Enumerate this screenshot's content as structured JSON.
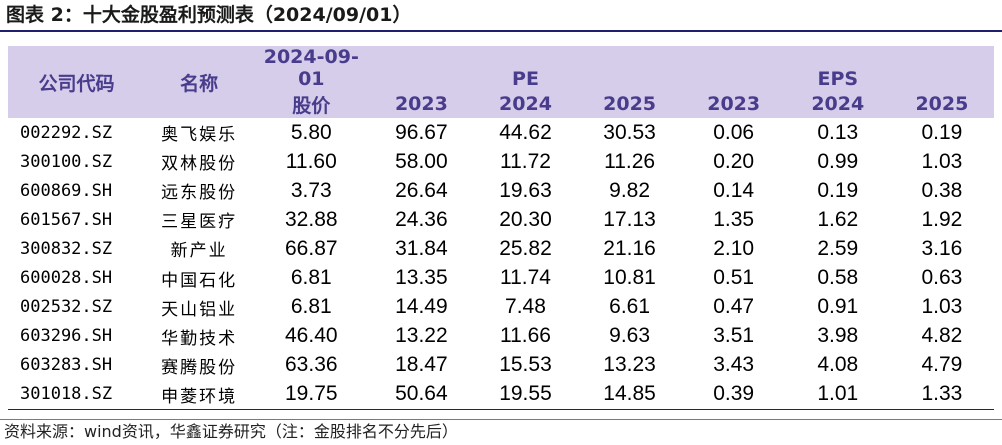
{
  "title": "图表 2：十大金股盈利预测表（2024/09/01）",
  "header": {
    "code": "公司代码",
    "name": "名称",
    "price_date": "2024-09-01",
    "price_label": "股价",
    "pe_group": "PE",
    "eps_group": "EPS",
    "years": [
      "2023",
      "2024",
      "2025"
    ]
  },
  "rows": [
    {
      "code": "002292.SZ",
      "name": "奥飞娱乐",
      "price": "5.80",
      "pe": [
        "96.67",
        "44.62",
        "30.53"
      ],
      "eps": [
        "0.06",
        "0.13",
        "0.19"
      ]
    },
    {
      "code": "300100.SZ",
      "name": "双林股份",
      "price": "11.60",
      "pe": [
        "58.00",
        "11.72",
        "11.26"
      ],
      "eps": [
        "0.20",
        "0.99",
        "1.03"
      ]
    },
    {
      "code": "600869.SH",
      "name": "远东股份",
      "price": "3.73",
      "pe": [
        "26.64",
        "19.63",
        "9.82"
      ],
      "eps": [
        "0.14",
        "0.19",
        "0.38"
      ]
    },
    {
      "code": "601567.SH",
      "name": "三星医疗",
      "price": "32.88",
      "pe": [
        "24.36",
        "20.30",
        "17.13"
      ],
      "eps": [
        "1.35",
        "1.62",
        "1.92"
      ]
    },
    {
      "code": "300832.SZ",
      "name": "新产业",
      "price": "66.87",
      "pe": [
        "31.84",
        "25.82",
        "21.16"
      ],
      "eps": [
        "2.10",
        "2.59",
        "3.16"
      ]
    },
    {
      "code": "600028.SH",
      "name": "中国石化",
      "price": "6.81",
      "pe": [
        "13.35",
        "11.74",
        "10.81"
      ],
      "eps": [
        "0.51",
        "0.58",
        "0.63"
      ]
    },
    {
      "code": "002532.SZ",
      "name": "天山铝业",
      "price": "6.81",
      "pe": [
        "14.49",
        "7.48",
        "6.61"
      ],
      "eps": [
        "0.47",
        "0.91",
        "1.03"
      ]
    },
    {
      "code": "603296.SH",
      "name": "华勤技术",
      "price": "46.40",
      "pe": [
        "13.22",
        "11.66",
        "9.63"
      ],
      "eps": [
        "3.51",
        "3.98",
        "4.82"
      ]
    },
    {
      "code": "603283.SH",
      "name": "赛腾股份",
      "price": "63.36",
      "pe": [
        "18.47",
        "15.53",
        "13.23"
      ],
      "eps": [
        "3.43",
        "4.08",
        "4.79"
      ]
    },
    {
      "code": "301018.SZ",
      "name": "申菱环境",
      "price": "19.75",
      "pe": [
        "50.64",
        "19.55",
        "14.85"
      ],
      "eps": [
        "0.39",
        "1.01",
        "1.33"
      ]
    }
  ],
  "footnote": "资料来源：wind资讯，华鑫证券研究（注：金股排名不分先后）",
  "colors": {
    "header_bg": "#d5cde9",
    "header_text": "#4a3c8c",
    "rule": "#1f1f6e"
  }
}
